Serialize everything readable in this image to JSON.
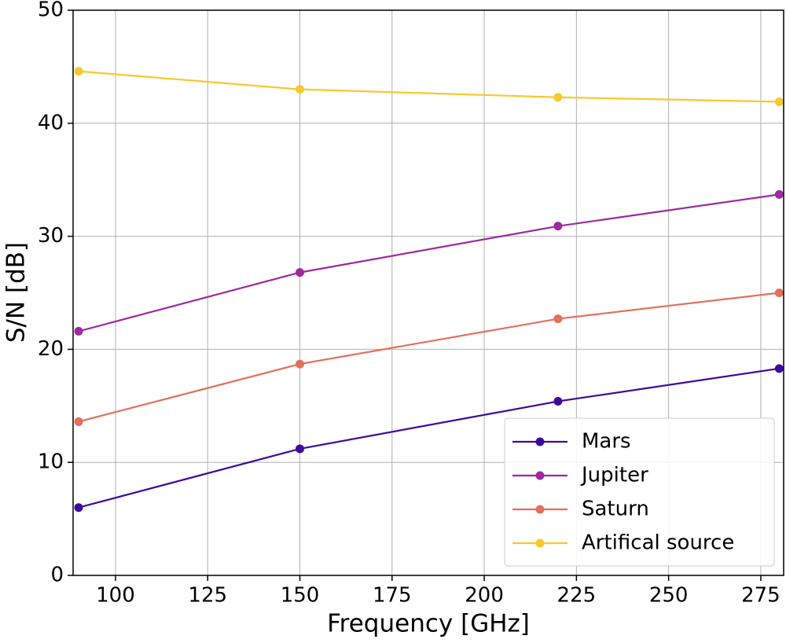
{
  "chart_data": {
    "type": "line",
    "x_label": "Frequency [GHz]",
    "y_label": "S/N [dB]",
    "x": [
      90,
      150,
      220,
      280
    ],
    "series": [
      {
        "name": "Mars",
        "color": "#3e0a9e",
        "values": [
          6.0,
          11.2,
          15.4,
          18.3
        ]
      },
      {
        "name": "Jupiter",
        "color": "#9c2a9d",
        "values": [
          21.6,
          26.8,
          30.9,
          33.7
        ]
      },
      {
        "name": "Saturn",
        "color": "#e3705a",
        "values": [
          13.6,
          18.7,
          22.7,
          25.0
        ]
      },
      {
        "name": "Artifical source",
        "color": "#f8c92a",
        "values": [
          44.6,
          43.0,
          42.3,
          41.9
        ]
      }
    ],
    "xlim": [
      88.5,
      281.2
    ],
    "xticks": [
      100,
      125,
      150,
      175,
      200,
      225,
      250,
      275
    ],
    "ylim": [
      0,
      50
    ],
    "yticks": [
      0,
      10,
      20,
      30,
      40,
      50
    ],
    "grid": true,
    "legend": "lower right"
  }
}
